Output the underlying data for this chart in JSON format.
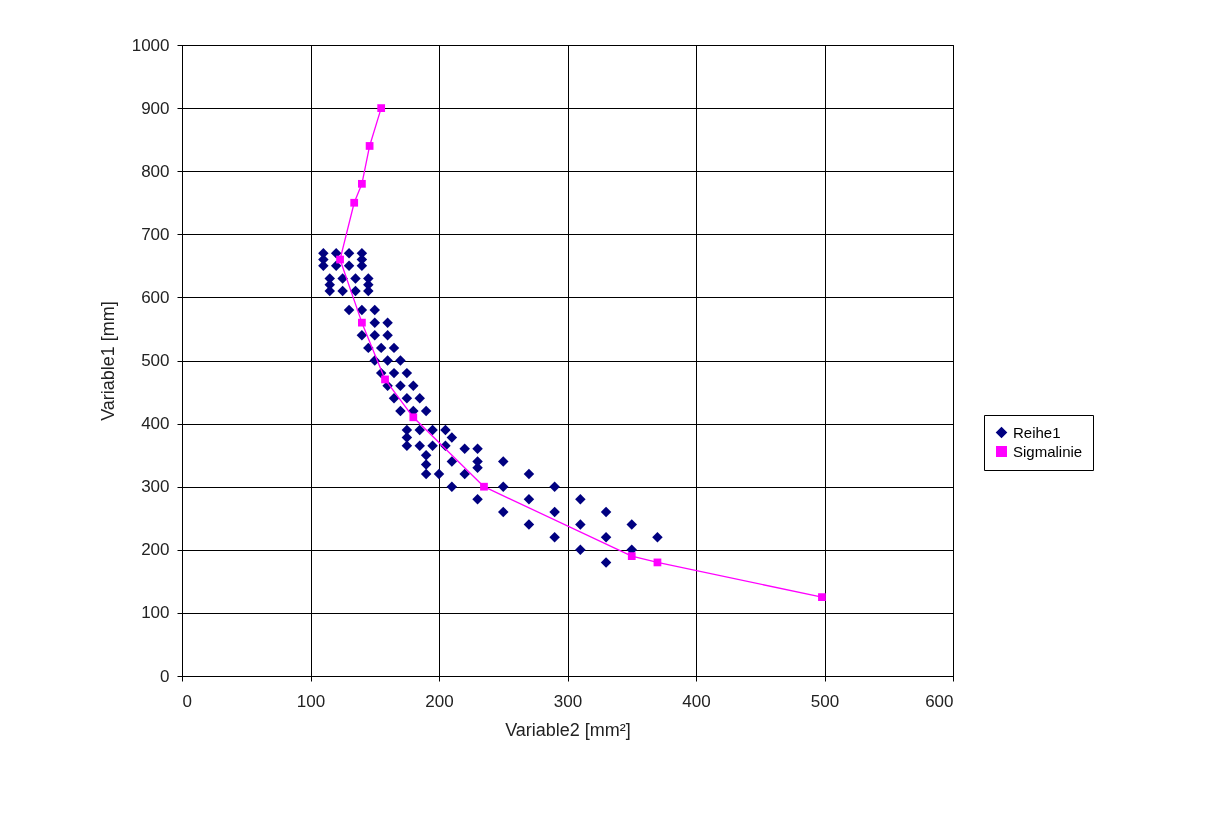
{
  "chart_data": {
    "type": "scatter",
    "xlabel": "Variable2 [mm²]",
    "ylabel": "Variable1 [mm]",
    "xlim": [
      0,
      600
    ],
    "ylim": [
      0,
      1000
    ],
    "xticks": [
      0,
      100,
      200,
      300,
      400,
      500,
      600
    ],
    "yticks": [
      0,
      100,
      200,
      300,
      400,
      500,
      600,
      700,
      800,
      900,
      {
        "value": 1000,
        "label": "1000"
      }
    ],
    "grid": true,
    "legend": "right",
    "series": [
      {
        "name": "Reihe1",
        "marker": "diamond",
        "color": "#000080",
        "x": [
          110,
          120,
          130,
          140,
          110,
          120,
          130,
          140,
          110,
          140,
          115,
          125,
          135,
          145,
          115,
          125,
          135,
          145,
          115,
          145,
          130,
          140,
          150,
          150,
          160,
          140,
          150,
          160,
          145,
          155,
          165,
          150,
          160,
          170,
          155,
          165,
          175,
          160,
          170,
          180,
          165,
          175,
          185,
          170,
          180,
          190,
          175,
          185,
          195,
          205,
          175,
          185,
          195,
          205,
          175,
          210,
          190,
          190,
          190,
          220,
          230,
          230,
          210,
          250,
          200,
          220,
          230,
          270,
          210,
          250,
          290,
          230,
          270,
          310,
          250,
          290,
          330,
          270,
          310,
          350,
          290,
          330,
          370,
          310,
          350,
          330
        ],
        "values": [
          670,
          670,
          670,
          670,
          650,
          650,
          650,
          650,
          660,
          660,
          630,
          630,
          630,
          630,
          610,
          610,
          610,
          610,
          620,
          620,
          580,
          580,
          580,
          560,
          560,
          540,
          540,
          540,
          520,
          520,
          520,
          500,
          500,
          500,
          480,
          480,
          480,
          460,
          460,
          460,
          440,
          440,
          440,
          420,
          420,
          420,
          390,
          390,
          390,
          390,
          365,
          365,
          365,
          365,
          378,
          378,
          350,
          335,
          320,
          360,
          360,
          340,
          340,
          340,
          320,
          320,
          330,
          320,
          300,
          300,
          300,
          280,
          280,
          280,
          260,
          260,
          260,
          240,
          240,
          240,
          220,
          220,
          220,
          200,
          200,
          180
        ]
      },
      {
        "name": "Sigmalinie",
        "type": "line",
        "marker": "square",
        "color": "#ff00ff",
        "x": [
          155,
          146,
          140,
          134,
          123,
          140,
          158,
          180,
          235,
          350,
          370,
          498
        ],
        "values": [
          900,
          840,
          780,
          750,
          660,
          560,
          470,
          410,
          300,
          190,
          180,
          125
        ]
      }
    ]
  }
}
